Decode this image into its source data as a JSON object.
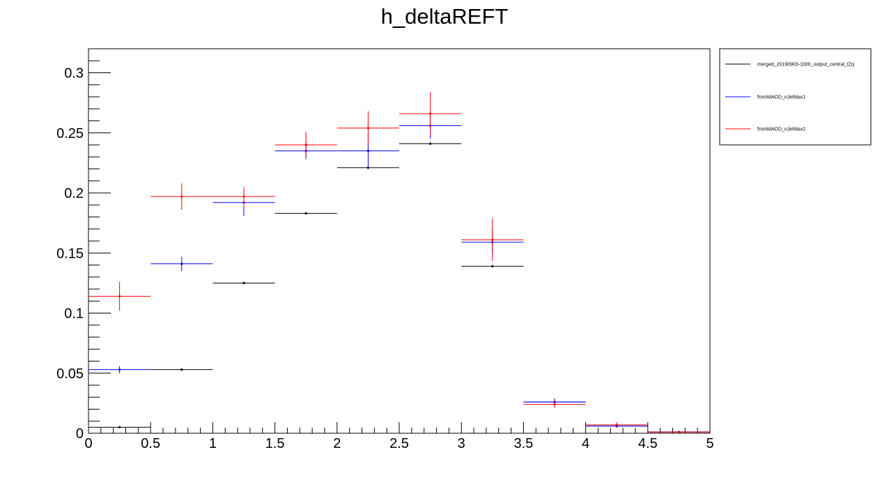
{
  "chart_data": {
    "type": "step-histogram-with-errorbars",
    "title": "h_deltaREFT",
    "xlabel": "",
    "ylabel": "",
    "xlim": [
      0,
      5
    ],
    "ylim": [
      0,
      0.32
    ],
    "x_ticks": [
      0,
      0.5,
      1,
      1.5,
      2,
      2.5,
      3,
      3.5,
      4,
      4.5,
      5
    ],
    "x_tick_labels": [
      "0",
      "0.5",
      "1",
      "1.5",
      "2",
      "2.5",
      "3",
      "3.5",
      "4",
      "4.5",
      "5"
    ],
    "y_ticks": [
      0,
      0.05,
      0.1,
      0.15,
      0.2,
      0.25,
      0.3
    ],
    "y_tick_labels": [
      "0",
      "0.05",
      "0.1",
      "0.15",
      "0.2",
      "0.25",
      "0.3"
    ],
    "grid": false,
    "legend_position": "right-outside-top",
    "bin_edges": [
      0,
      0.5,
      1,
      1.5,
      2,
      2.5,
      3,
      3.5,
      4,
      4.5,
      5
    ],
    "series": [
      {
        "name": "merged_20190903-1000_output_central_tZq",
        "color": "#000000",
        "values": [
          0.005,
          0.053,
          0.125,
          0.183,
          0.221,
          0.241,
          0.139,
          0.026,
          0.006,
          0.001
        ],
        "errors": [
          0.0005,
          0.001,
          0.001,
          0.001,
          0.001,
          0.001,
          0.001,
          0.0005,
          0.0003,
          0.0001
        ]
      },
      {
        "name": "fromMAOD_nJetMax1",
        "color": "#0000ff",
        "values": [
          0.053,
          0.141,
          0.192,
          0.235,
          0.235,
          0.256,
          0.159,
          0.026,
          0.006,
          0.001
        ],
        "errors": [
          0.003,
          0.006,
          0.011,
          0.007,
          0.014,
          0.011,
          0.01,
          0.003,
          0.0015,
          0.0005
        ]
      },
      {
        "name": "fromMAOD_nJetMax2",
        "color": "#ff0000",
        "values": [
          0.114,
          0.197,
          0.197,
          0.24,
          0.254,
          0.266,
          0.161,
          0.024,
          0.007,
          0.001
        ],
        "errors": [
          0.012,
          0.011,
          0.008,
          0.011,
          0.014,
          0.018,
          0.018,
          0.003,
          0.002,
          0.0005
        ]
      }
    ]
  }
}
